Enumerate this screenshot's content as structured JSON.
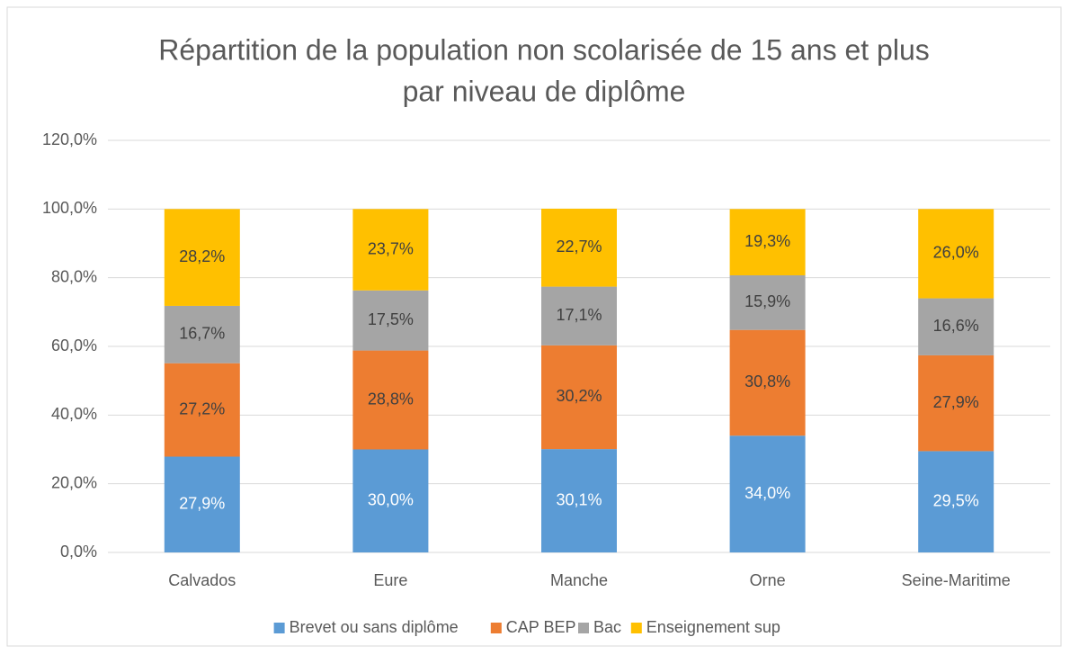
{
  "chart_data": {
    "type": "stacked_bar",
    "title": [
      "Répartition de la population non scolarisée de 15 ans et plus",
      "par niveau de diplôme"
    ],
    "categories": [
      "Calvados",
      "Eure",
      "Manche",
      "Orne",
      "Seine-Maritime"
    ],
    "series": [
      {
        "name": "Brevet ou sans diplôme",
        "color": "#5b9bd5",
        "values": [
          27.9,
          30.0,
          30.1,
          34.0,
          29.5
        ],
        "value_labels": [
          "27,9%",
          "30,0%",
          "30,1%",
          "34,0%",
          "29,5%"
        ]
      },
      {
        "name": "CAP BEP",
        "color": "#ed7d31",
        "values": [
          27.2,
          28.8,
          30.2,
          30.8,
          27.9
        ],
        "value_labels": [
          "27,2%",
          "28,8%",
          "30,2%",
          "30,8%",
          "27,9%"
        ]
      },
      {
        "name": "Bac",
        "color": "#a5a5a5",
        "values": [
          16.7,
          17.5,
          17.1,
          15.9,
          16.6
        ],
        "value_labels": [
          "16,7%",
          "17,5%",
          "17,1%",
          "15,9%",
          "16,6%"
        ]
      },
      {
        "name": "Enseignement sup",
        "color": "#ffc000",
        "values": [
          28.2,
          23.7,
          22.7,
          19.3,
          26.0
        ],
        "value_labels": [
          "28,2%",
          "23,7%",
          "22,7%",
          "19,3%",
          "26,0%"
        ]
      }
    ],
    "ylim": [
      0,
      120
    ],
    "yticks": [
      {
        "value": 0,
        "label": "0,0%"
      },
      {
        "value": 20,
        "label": "20,0%"
      },
      {
        "value": 40,
        "label": "40,0%"
      },
      {
        "value": 60,
        "label": "60,0%"
      },
      {
        "value": 80,
        "label": "80,0%"
      },
      {
        "value": 100,
        "label": "100,0%"
      },
      {
        "value": 120,
        "label": "120,0%"
      }
    ],
    "grid": true,
    "legend": "bottom"
  }
}
